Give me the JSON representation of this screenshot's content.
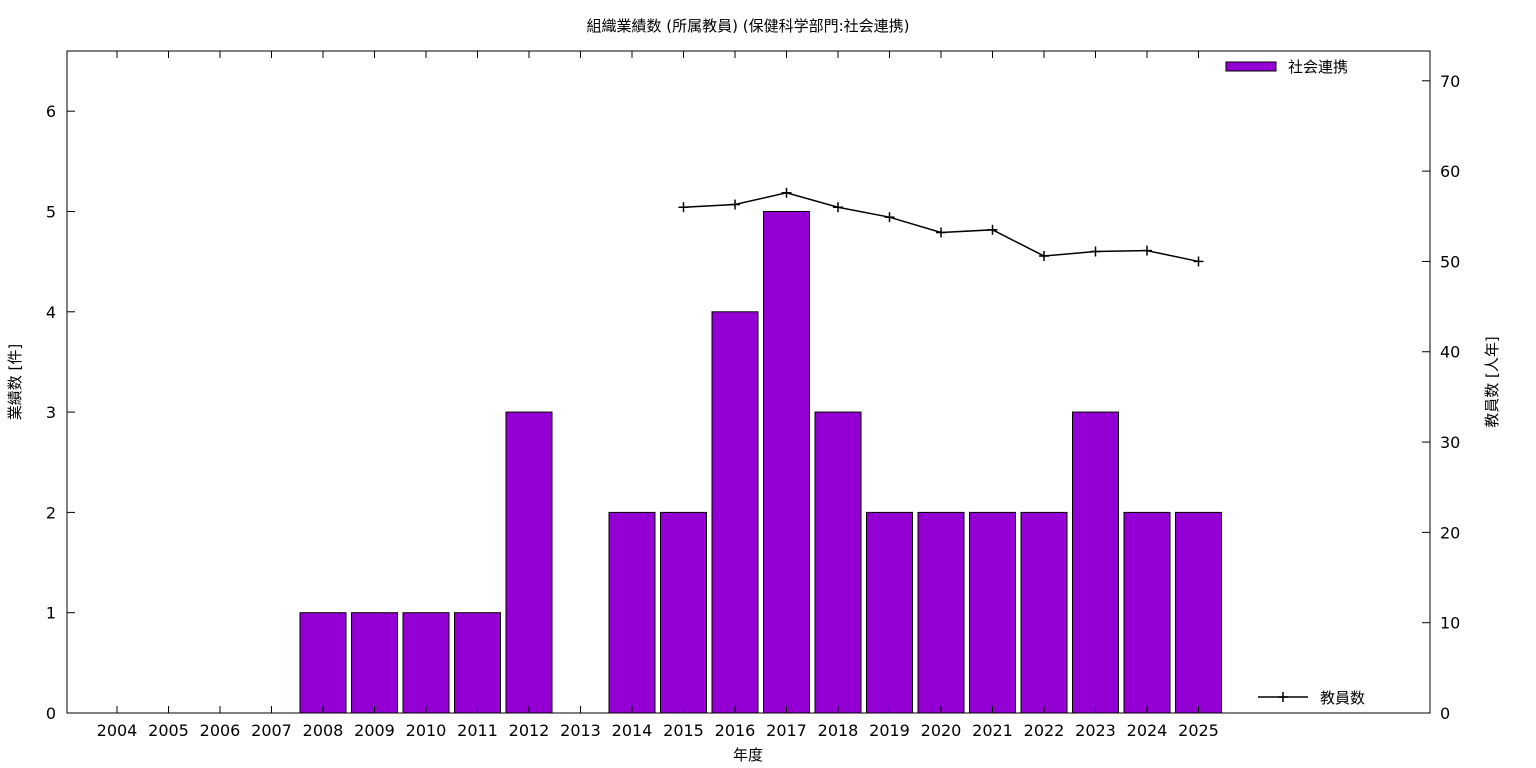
{
  "chart_data": {
    "type": "bar",
    "title": "組織業績数 (所属教員) (保健科学部門:社会連携)",
    "xlabel": "年度",
    "ylabel": "業績数 [件]",
    "y2label": "教員数 [人年]",
    "categories": [
      "2004",
      "2005",
      "2006",
      "2007",
      "2008",
      "2009",
      "2010",
      "2011",
      "2012",
      "2013",
      "2014",
      "2015",
      "2016",
      "2017",
      "2018",
      "2019",
      "2020",
      "2021",
      "2022",
      "2023",
      "2024",
      "2025"
    ],
    "ylim": [
      0,
      6.6
    ],
    "y2lim": [
      0,
      73.3
    ],
    "yticks": [
      0,
      1,
      2,
      3,
      4,
      5,
      6
    ],
    "y2ticks": [
      0,
      10,
      20,
      30,
      40,
      50,
      60,
      70
    ],
    "grid": false,
    "series": [
      {
        "name": "社会連携",
        "kind": "bar",
        "axis": "left",
        "color": "#9400d3",
        "values": [
          0,
          0,
          0,
          0,
          1,
          1,
          1,
          1,
          3,
          0,
          2,
          2,
          4,
          5,
          3,
          2,
          2,
          2,
          2,
          3,
          2,
          2
        ]
      },
      {
        "name": "教員数",
        "kind": "line",
        "axis": "right",
        "color": "#000000",
        "marker": "plus",
        "values": [
          null,
          null,
          null,
          null,
          null,
          null,
          null,
          null,
          null,
          null,
          null,
          56.0,
          56.3,
          57.6,
          56.0,
          54.9,
          53.2,
          53.5,
          50.6,
          51.1,
          51.2,
          50.0
        ]
      }
    ],
    "legend": [
      {
        "label": "社会連携",
        "placement": "top-right"
      },
      {
        "label": "教員数",
        "placement": "bottom-right"
      }
    ]
  }
}
